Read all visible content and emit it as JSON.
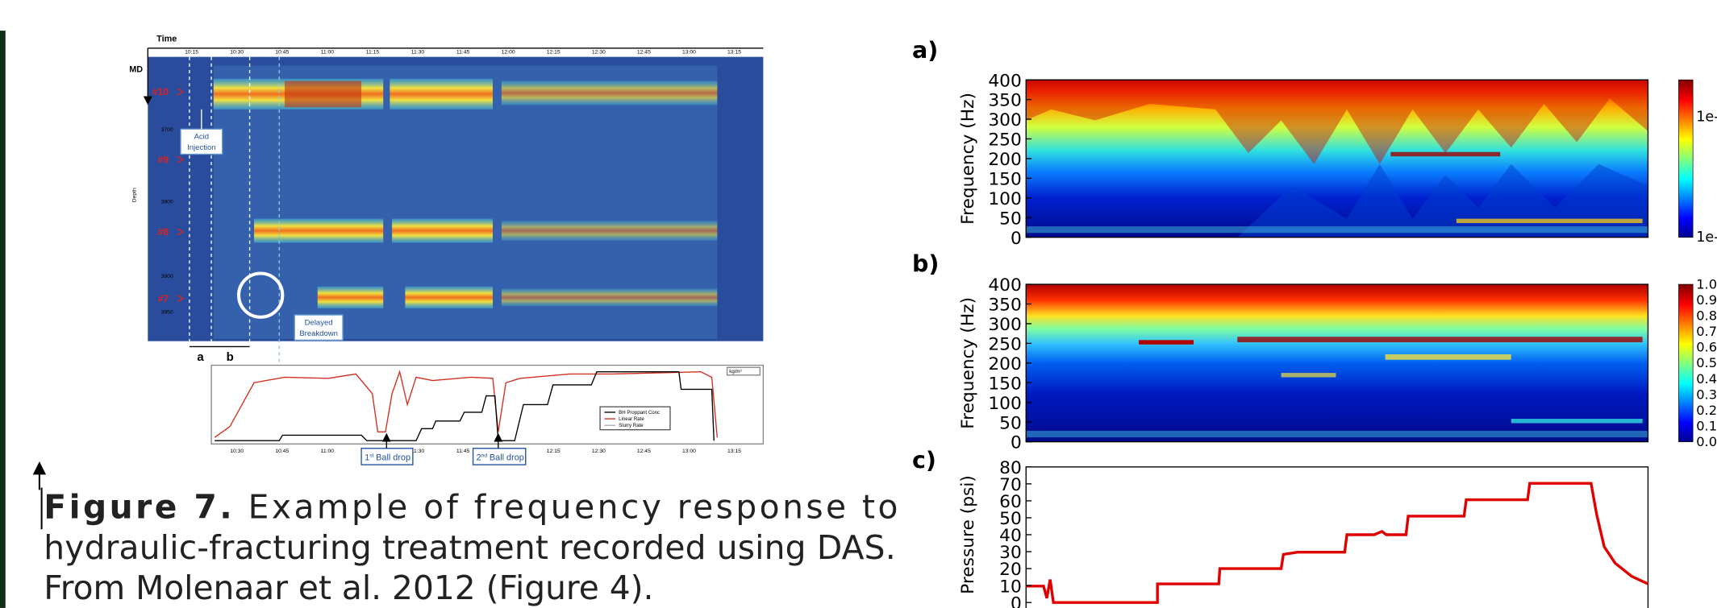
{
  "left_figure": {
    "time_label": "Time",
    "md_label": "MD",
    "times": [
      "10:15",
      "10:30",
      "10:45",
      "11:00",
      "11:15",
      "11:30",
      "11:45",
      "12:00",
      "12:15",
      "12:30",
      "12:45",
      "13:00",
      "13:15"
    ],
    "zones": [
      "#10",
      "#9",
      "#8",
      "#7"
    ],
    "depth_label": "Depth",
    "depths": [
      "3700",
      "3800",
      "3900",
      "3950"
    ],
    "acid_injection": [
      "Acid",
      "Injection"
    ],
    "delayed_breakdown": [
      "Delayed",
      "Breakdown"
    ],
    "intervals": [
      "a",
      "b"
    ],
    "units": "kg/m³",
    "legend": [
      "BH Proppant Conc",
      "Linear Rate",
      "Slurry Rate"
    ],
    "ball_drops": [
      {
        "ordinal": "1",
        "suffix": "st",
        "text": "Ball drop"
      },
      {
        "ordinal": "2",
        "suffix": "nd",
        "text": "Ball drop"
      }
    ]
  },
  "caption": {
    "label": "Figure 7.",
    "lines": [
      "Example of frequency response to",
      "hydraulic-fracturing treatment recorded using DAS.",
      "From Molenaar et al. 2012 (Figure 4)."
    ]
  },
  "panels": [
    {
      "label": "a)",
      "ylabel": "Frequency (Hz)",
      "yticks": [
        0,
        50,
        100,
        150,
        200,
        250,
        300,
        350,
        400
      ],
      "colorbar_labels": [
        "1e-",
        "1e-"
      ]
    },
    {
      "label": "b)",
      "ylabel": "Frequency (Hz)",
      "yticks": [
        0,
        50,
        100,
        150,
        200,
        250,
        300,
        350,
        400
      ],
      "colorbar_labels": [
        "1.0",
        "0.9",
        "0.8",
        "0.7",
        "0.6",
        "0.5",
        "0.4",
        "0.3",
        "0.2",
        "0.1",
        "0.0"
      ]
    },
    {
      "label": "c)",
      "ylabel": "Pressure (psi)",
      "yticks": [
        0,
        10,
        20,
        30,
        40,
        50,
        60,
        70,
        80
      ]
    }
  ]
}
